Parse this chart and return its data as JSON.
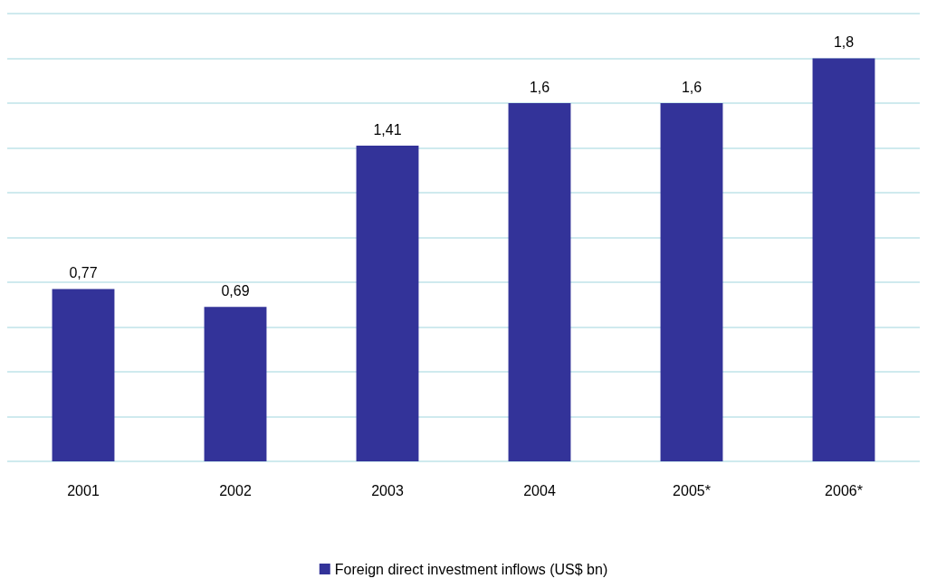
{
  "chart_data": {
    "type": "bar",
    "categories": [
      "2001",
      "2002",
      "2003",
      "2004",
      "2005*",
      "2006*"
    ],
    "series": [
      {
        "name": "Foreign direct investment inflows (US$ bn)",
        "color": "#333399",
        "values": [
          0.77,
          0.69,
          1.41,
          1.6,
          1.6,
          1.8
        ],
        "value_labels": [
          "0,77",
          "0,69",
          "1,41",
          "1,6",
          "1,6",
          "1,8"
        ]
      }
    ],
    "ylim": [
      0,
      2
    ],
    "yticks": [
      {
        "value": 0,
        "label": null
      },
      {
        "value": 0.2,
        "label": null
      },
      {
        "value": 0.4,
        "label": null
      },
      {
        "value": 0.6,
        "label": null
      },
      {
        "value": 0.8,
        "label": null
      },
      {
        "value": 1,
        "label": null
      },
      {
        "value": 1.2,
        "label": null
      },
      {
        "value": 1.4,
        "label": null
      },
      {
        "value": 1.6,
        "label": null
      },
      {
        "value": 1.8,
        "label": null
      },
      {
        "value": 2,
        "label": null
      }
    ],
    "grid": "y",
    "legend": "bottom",
    "tick_labels": "x"
  }
}
